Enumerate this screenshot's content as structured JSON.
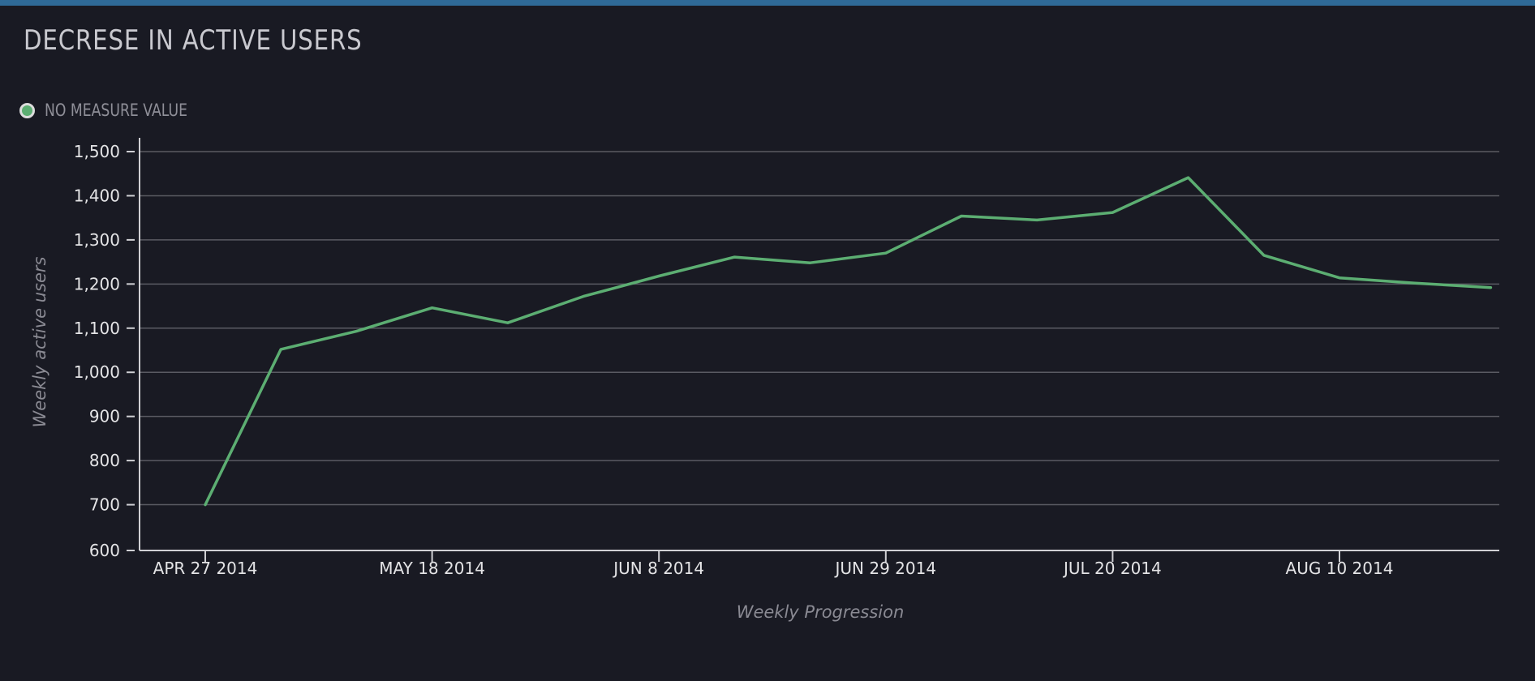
{
  "chart_data": {
    "type": "line",
    "title": "DECRESE IN ACTIVE USERS",
    "xlabel": "Weekly Progression",
    "ylabel": "Weekly active users",
    "ylim": [
      600,
      1500
    ],
    "yticks": [
      "600",
      "700",
      "800",
      "900",
      "1,000",
      "1,100",
      "1,200",
      "1,300",
      "1,400",
      "1,500"
    ],
    "ytick_values": [
      600,
      700,
      800,
      900,
      1000,
      1100,
      1200,
      1300,
      1400,
      1500
    ],
    "xticks": [
      "APR 27 2014",
      "MAY 18 2014",
      "JUN 8 2014",
      "JUN 29 2014",
      "JUL 20 2014",
      "AUG 10 2014"
    ],
    "xtick_positions": [
      0,
      3,
      6,
      9,
      12,
      15
    ],
    "x_count": 18,
    "grid": true,
    "legend_position": "top-left",
    "series": [
      {
        "name": "NO MEASURE VALUE",
        "color": "#5cae72",
        "values": [
          700,
          1052,
          1093,
          1146,
          1112,
          1172,
          1218,
          1261,
          1248,
          1270,
          1354,
          1345,
          1362,
          1441,
          1265,
          1214,
          1202,
          1192
        ]
      }
    ]
  },
  "colors": {
    "background": "#191a23",
    "accent_bar": "#2f6a97",
    "grid": "#5a5b63",
    "axis": "#d0d0d4"
  }
}
